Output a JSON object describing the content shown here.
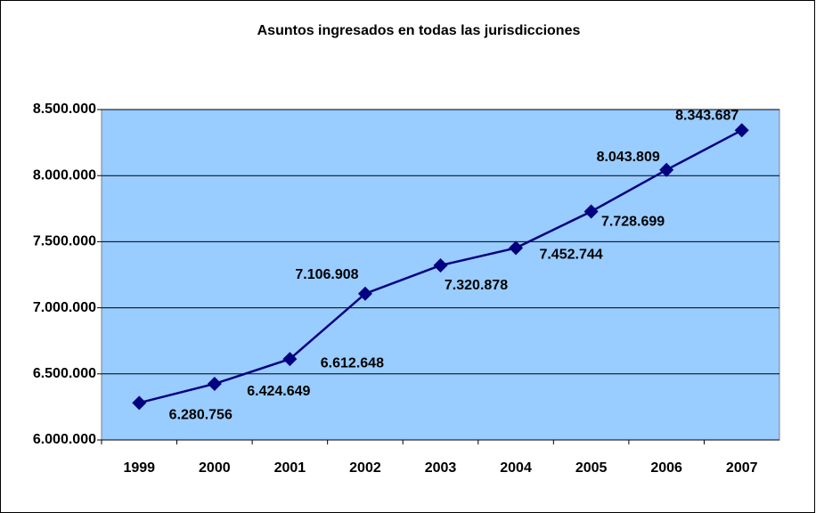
{
  "chart_data": {
    "type": "line",
    "title": "Asuntos ingresados en todas las jurisdicciones",
    "categories": [
      "1999",
      "2000",
      "2001",
      "2002",
      "2003",
      "2004",
      "2005",
      "2006",
      "2007"
    ],
    "series": [
      {
        "name": "Asuntos ingresados",
        "color": "#000080",
        "values": [
          6280756,
          6424649,
          6612648,
          7106908,
          7320878,
          7452744,
          7728699,
          8043809,
          8343687
        ],
        "value_labels": [
          "6.280.756",
          "6.424.649",
          "6.612.648",
          "7.106.908",
          "7.320.878",
          "7.452.744",
          "7.728.699",
          "8.043.809",
          "8.343.687"
        ]
      }
    ],
    "ylim": [
      6000000,
      8500000
    ],
    "yticks": [
      {
        "value": 6000000,
        "label": "6.000.000"
      },
      {
        "value": 6500000,
        "label": "6.500.000"
      },
      {
        "value": 7000000,
        "label": "7.000.000"
      },
      {
        "value": 7500000,
        "label": "7.500.000"
      },
      {
        "value": 8000000,
        "label": "8.000.000"
      },
      {
        "value": 8500000,
        "label": "8.500.000"
      }
    ],
    "grid": true,
    "plot_background": "#99ccff"
  }
}
